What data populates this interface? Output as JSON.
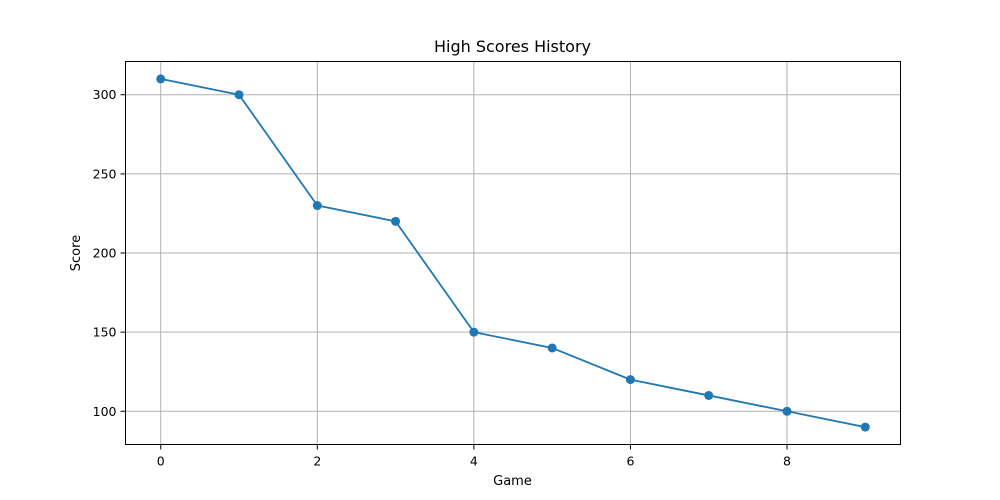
{
  "chart_data": {
    "type": "line",
    "title": "High Scores History",
    "xlabel": "Game",
    "ylabel": "Score",
    "x": [
      0,
      1,
      2,
      3,
      4,
      5,
      6,
      7,
      8,
      9
    ],
    "series": [
      {
        "values": [
          310,
          300,
          230,
          220,
          150,
          140,
          120,
          110,
          100,
          90
        ]
      }
    ],
    "xlim": [
      -0.45,
      9.45
    ],
    "ylim": [
      79,
      321
    ],
    "xticks": [
      0,
      2,
      4,
      6,
      8
    ],
    "yticks": [
      100,
      150,
      200,
      250,
      300
    ],
    "grid": true,
    "markers": true,
    "colors": {
      "line": "#1f77b4"
    }
  }
}
